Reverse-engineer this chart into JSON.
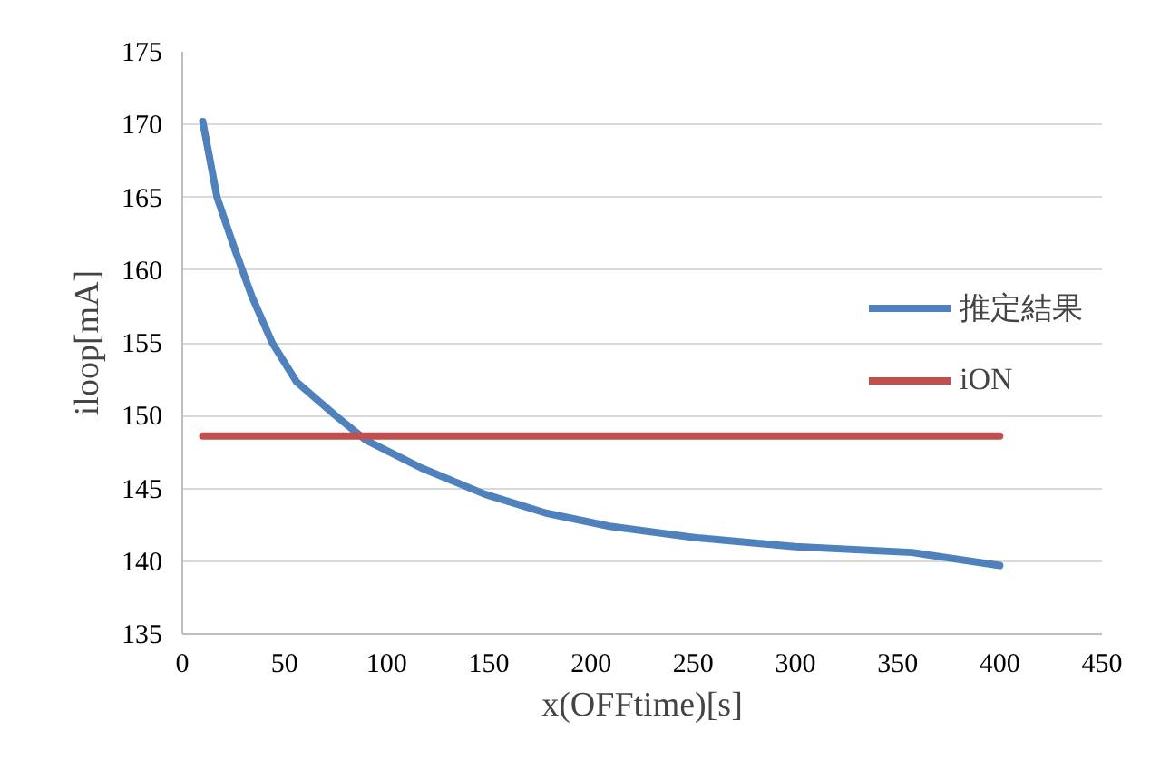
{
  "chart_data": {
    "type": "line",
    "xlabel": "x(OFFtime)[s]",
    "ylabel": "iloop[mA]",
    "xlim": [
      0,
      450
    ],
    "xticks": [
      0,
      50,
      100,
      150,
      200,
      250,
      300,
      350,
      400,
      450
    ],
    "ylim": [
      135,
      175
    ],
    "yticks": [
      135,
      140,
      145,
      150,
      155,
      160,
      165,
      170,
      175
    ],
    "grid": "y",
    "legend": "right",
    "marker": "none",
    "line_style": "solid",
    "series": [
      {
        "name": "推定結果",
        "color": "#4f81bd",
        "x": [
          10,
          17,
          26,
          34,
          44,
          56,
          75,
          90,
          117,
          148,
          178,
          209,
          252,
          300,
          357,
          400
        ],
        "values": [
          170.2,
          165.0,
          161.3,
          158.2,
          155.0,
          152.3,
          150.0,
          148.3,
          146.4,
          144.6,
          143.3,
          142.4,
          141.6,
          141.0,
          140.6,
          139.7
        ]
      },
      {
        "name": "iON",
        "color": "#c0504d",
        "x": [
          10,
          400
        ],
        "values": [
          148.6,
          148.6
        ]
      }
    ]
  }
}
